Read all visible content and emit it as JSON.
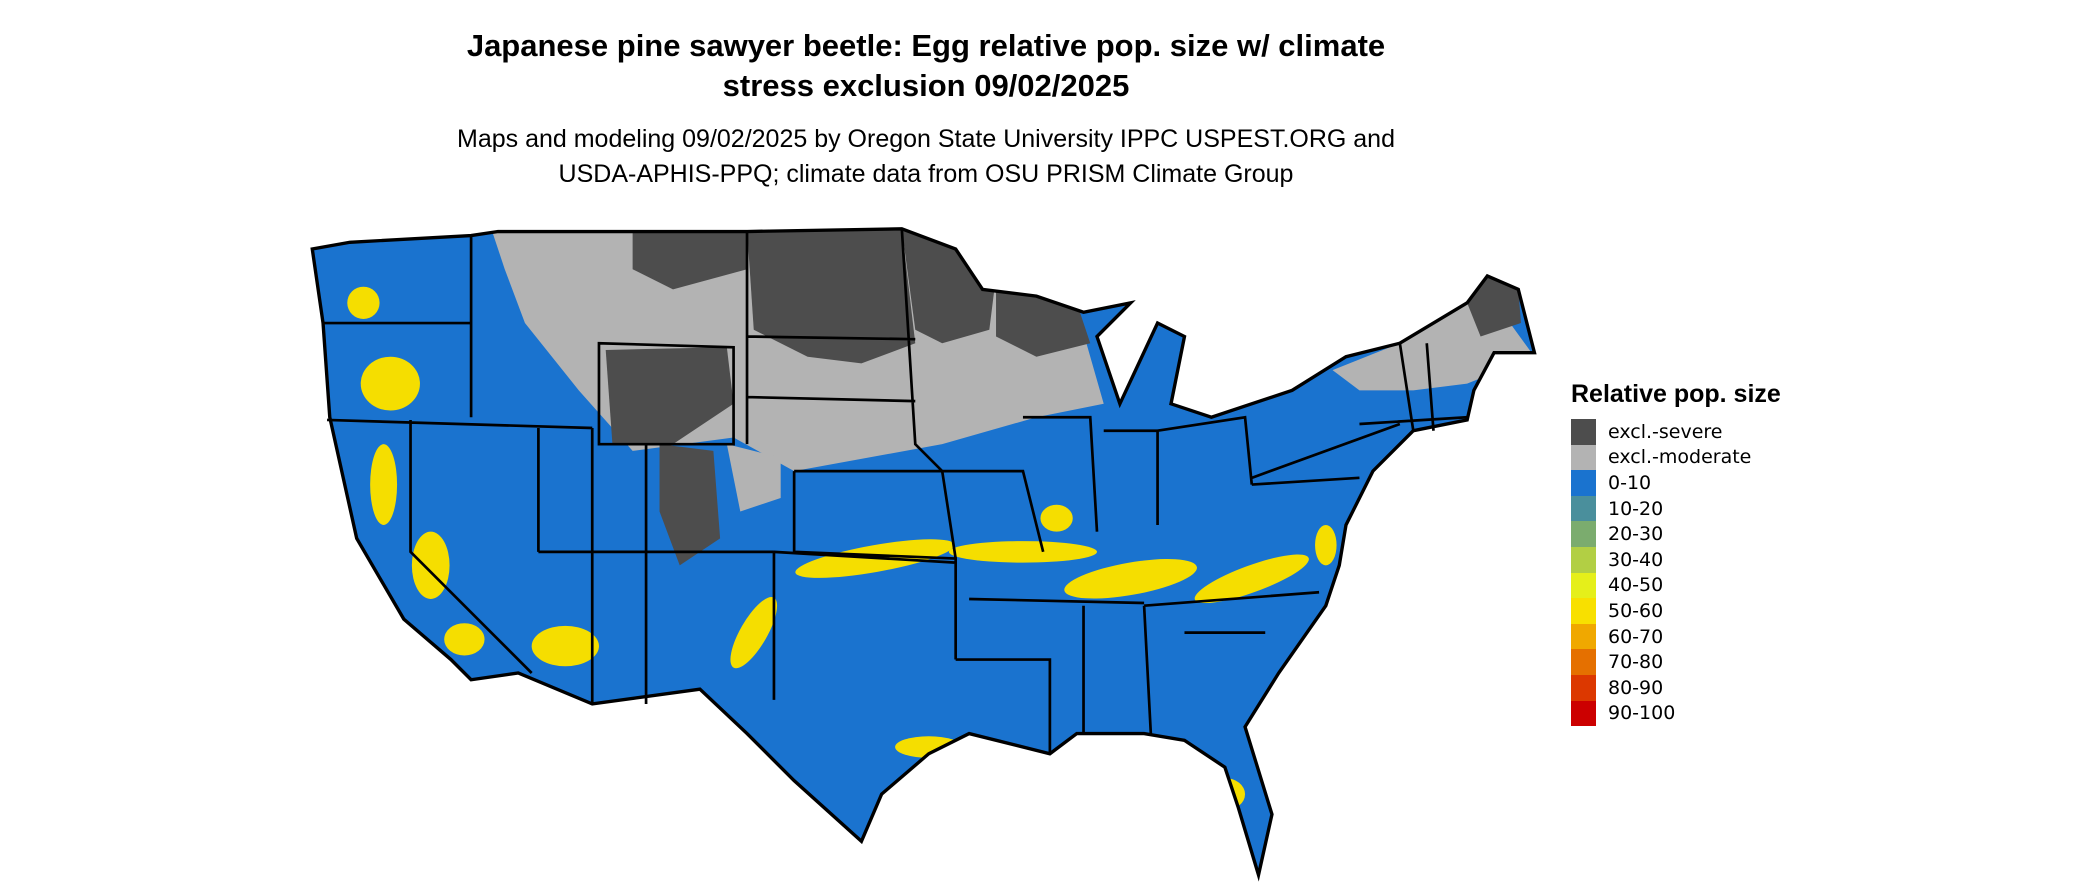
{
  "title_line1": "Japanese pine sawyer beetle: Egg relative pop. size w/ climate",
  "title_line2": "stress exclusion 09/02/2025",
  "subtitle_line1": "Maps and modeling 09/02/2025 by Oregon State University IPPC USPEST.ORG and",
  "subtitle_line2": "USDA-APHIS-PPQ; climate data from OSU PRISM Climate Group",
  "legend": {
    "title": "Relative pop. size",
    "items": [
      {
        "label": "excl.-severe",
        "color": "#4d4d4d"
      },
      {
        "label": "excl.-moderate",
        "color": "#b3b3b3"
      },
      {
        "label": "0-10",
        "color": "#1a73cf"
      },
      {
        "label": "10-20",
        "color": "#4a8f9c"
      },
      {
        "label": "20-30",
        "color": "#7bac6e"
      },
      {
        "label": "30-40",
        "color": "#b2cf44"
      },
      {
        "label": "40-50",
        "color": "#e5ef1a"
      },
      {
        "label": "50-60",
        "color": "#f8e000"
      },
      {
        "label": "60-70",
        "color": "#f0a800"
      },
      {
        "label": "70-80",
        "color": "#e57000"
      },
      {
        "label": "80-90",
        "color": "#dc3800"
      },
      {
        "label": "90-100",
        "color": "#cc0000"
      }
    ]
  }
}
